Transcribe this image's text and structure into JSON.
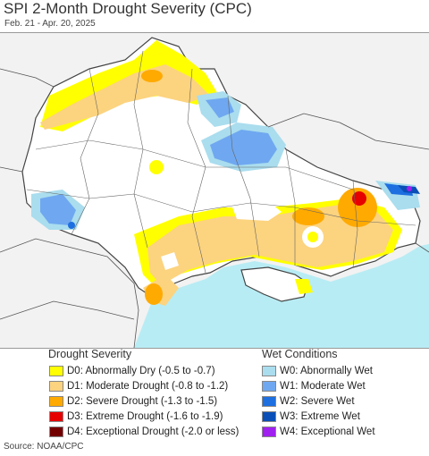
{
  "header": {
    "title": "SPI 2-Month Drought Severity (CPC)",
    "date_range": "Feb. 21 - Apr. 20, 2025"
  },
  "legend": {
    "drought_heading": "Drought Severity",
    "drought_items": [
      {
        "label": "D0: Abnormally Dry (-0.5 to -0.7)",
        "color": "#ffff00"
      },
      {
        "label": "D1: Moderate Drought (-0.8 to -1.2)",
        "color": "#fcd37f"
      },
      {
        "label": "D2: Severe Drought (-1.3 to -1.5)",
        "color": "#ffaa00"
      },
      {
        "label": "D3: Extreme Drought (-1.6 to -1.9)",
        "color": "#e60000"
      },
      {
        "label": "D4: Exceptional Drought (-2.0 or less)",
        "color": "#730000"
      }
    ],
    "wet_heading": "Wet Conditions",
    "wet_items": [
      {
        "label": "W0: Abnormally Wet",
        "color": "#aaddee"
      },
      {
        "label": "W1: Moderate Wet",
        "color": "#6fa8f0"
      },
      {
        "label": "W2: Severe Wet",
        "color": "#1e6fe0"
      },
      {
        "label": "W3: Extreme Wet",
        "color": "#0a4fb8"
      },
      {
        "label": "W4: Exceptional Wet",
        "color": "#a020f0"
      }
    ]
  },
  "footer": {
    "source": "Source: NOAA/CPC"
  },
  "colors": {
    "sea": "#b8ecf4",
    "land_outside": "#f2f2f2",
    "land_inside": "#ffffff",
    "borders": "#555555"
  }
}
